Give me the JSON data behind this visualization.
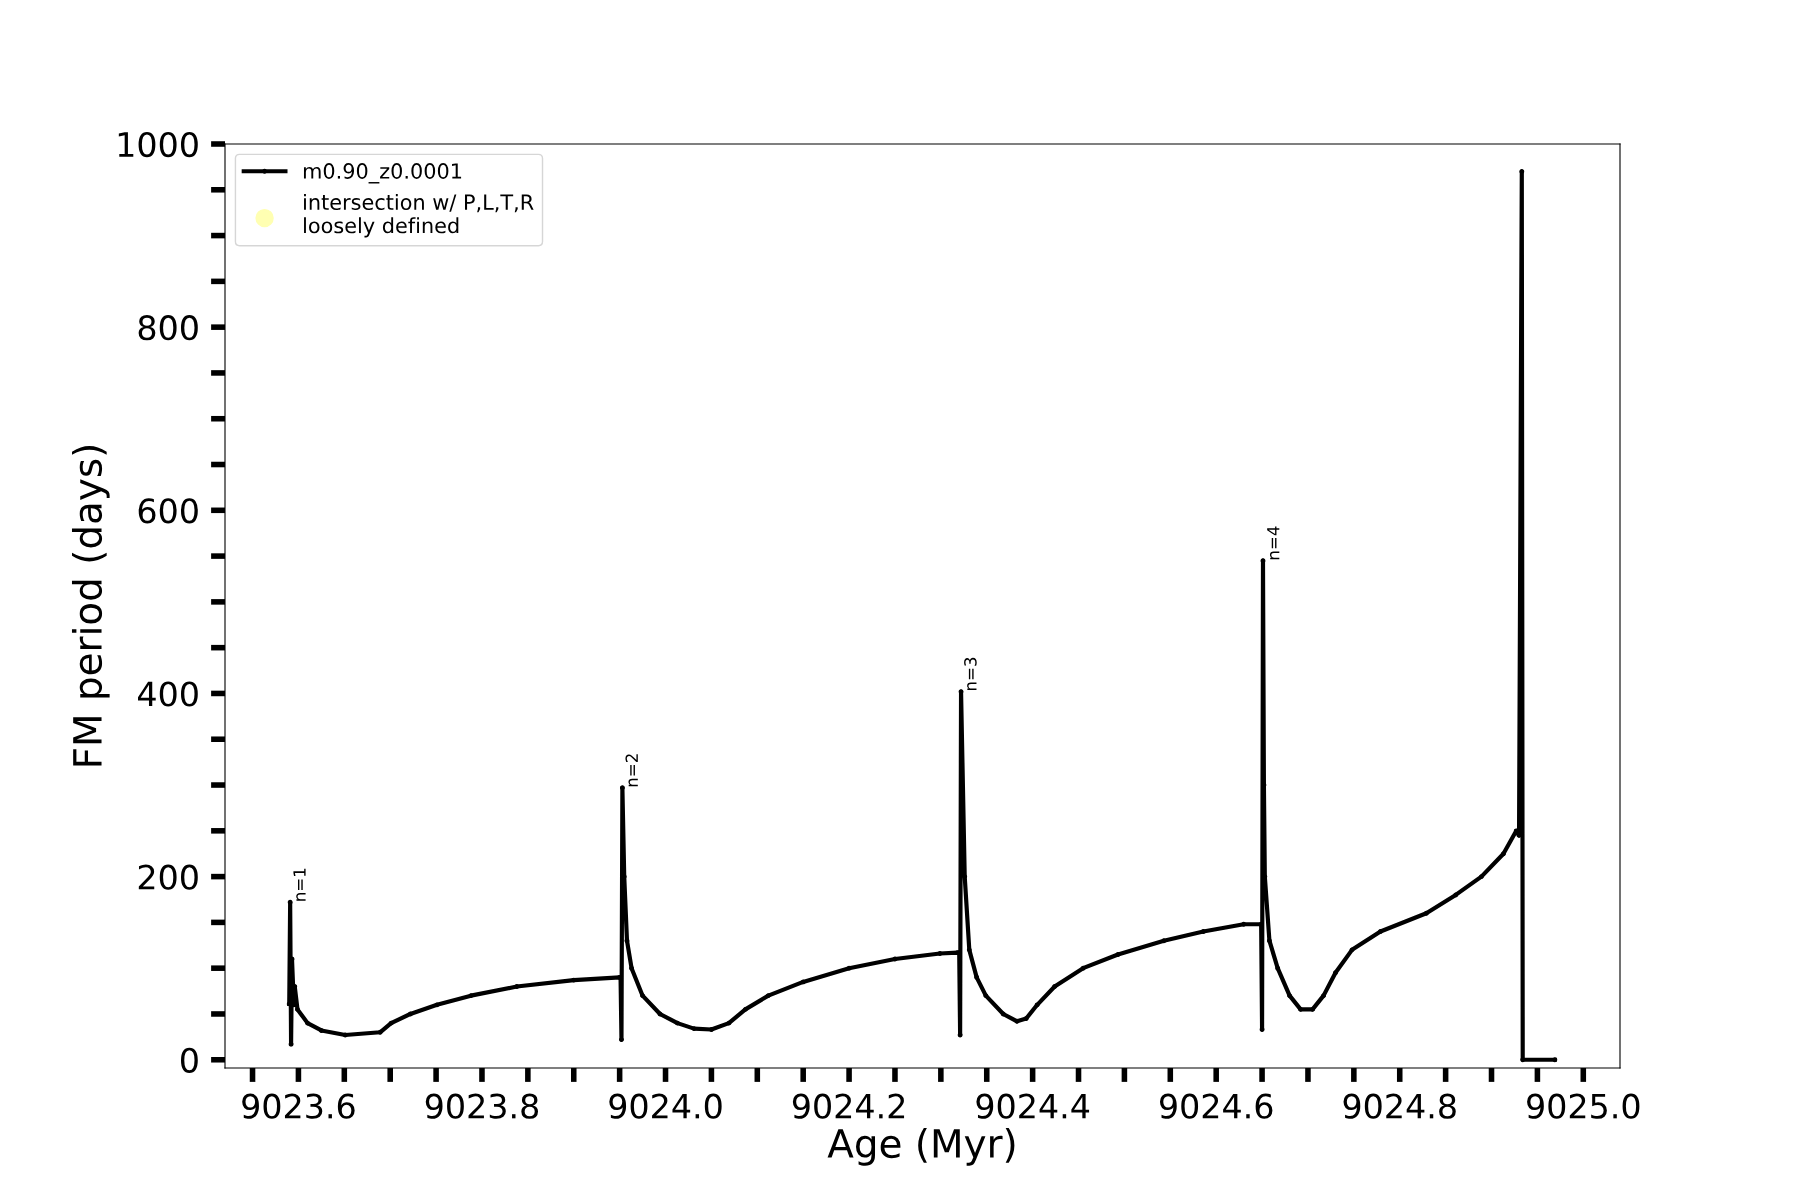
{
  "chart_data": {
    "type": "line",
    "xlabel": "Age (Myr)",
    "ylabel": "FM period (days)",
    "xlim": [
      9023.52,
      9025.04
    ],
    "ylim": [
      -9,
      1000
    ],
    "xticks": [
      {
        "value": 9023.55,
        "label": null
      },
      9023.6,
      {
        "value": 9023.65,
        "label": null
      },
      {
        "value": 9023.7,
        "label": null
      },
      {
        "value": 9023.75,
        "label": null
      },
      9023.8,
      {
        "value": 9023.85,
        "label": null
      },
      {
        "value": 9023.9,
        "label": null
      },
      {
        "value": 9023.95,
        "label": null
      },
      {
        "value": 9024.0,
        "label": "9024.0"
      },
      {
        "value": 9024.05,
        "label": null
      },
      {
        "value": 9024.1,
        "label": null
      },
      {
        "value": 9024.15,
        "label": null
      },
      9024.2,
      {
        "value": 9024.25,
        "label": null
      },
      {
        "value": 9024.3,
        "label": null
      },
      {
        "value": 9024.35,
        "label": null
      },
      9024.4,
      {
        "value": 9024.45,
        "label": null
      },
      {
        "value": 9024.5,
        "label": null
      },
      {
        "value": 9024.55,
        "label": null
      },
      9024.6,
      {
        "value": 9024.65,
        "label": null
      },
      {
        "value": 9024.7,
        "label": null
      },
      {
        "value": 9024.75,
        "label": null
      },
      9024.8,
      {
        "value": 9024.85,
        "label": null
      },
      {
        "value": 9024.9,
        "label": null
      },
      {
        "value": 9024.95,
        "label": null
      },
      {
        "value": 9025.0,
        "label": "9025.0"
      }
    ],
    "yticks": [
      0,
      {
        "value": 50,
        "label": null
      },
      {
        "value": 100,
        "label": null
      },
      {
        "value": 150,
        "label": null
      },
      200,
      {
        "value": 250,
        "label": null
      },
      {
        "value": 300,
        "label": null
      },
      {
        "value": 350,
        "label": null
      },
      400,
      {
        "value": 450,
        "label": null
      },
      {
        "value": 500,
        "label": null
      },
      {
        "value": 550,
        "label": null
      },
      600,
      {
        "value": 650,
        "label": null
      },
      {
        "value": 700,
        "label": null
      },
      {
        "value": 750,
        "label": null
      },
      800,
      {
        "value": 850,
        "label": null
      },
      {
        "value": 900,
        "label": null
      },
      {
        "value": 950,
        "label": null
      },
      1000
    ],
    "grid": false,
    "legend": "top left",
    "marker": "circle",
    "line_style": "solid",
    "series": [
      {
        "name": "m0.90_z0.0001",
        "color": "#000000",
        "x": [
          9023.59,
          9023.591,
          9023.592,
          9023.593,
          9023.595,
          9023.596,
          9023.599,
          9023.61,
          9023.625,
          9023.651,
          9023.689,
          9023.701,
          9023.722,
          9023.751,
          9023.788,
          9023.838,
          9023.9,
          9023.95,
          9023.951,
          9023.952,
          9023.953,
          9023.955,
          9023.958,
          9023.963,
          9023.975,
          9023.994,
          9024.013,
          9024.031,
          9024.05,
          9024.069,
          9024.087,
          9024.112,
          9024.15,
          9024.2,
          9024.25,
          9024.299,
          9024.318,
          9024.32,
          9024.321,
          9024.322,
          9024.326,
          9024.331,
          9024.339,
          9024.349,
          9024.368,
          9024.383,
          9024.393,
          9024.405,
          9024.424,
          9024.455,
          9024.493,
          9024.543,
          9024.586,
          9024.63,
          9024.649,
          9024.65,
          9024.651,
          9024.652,
          9024.653,
          9024.658,
          9024.667,
          9024.68,
          9024.692,
          9024.705,
          9024.717,
          9024.73,
          9024.748,
          9024.779,
          9024.829,
          9024.861,
          9024.889,
          9024.913,
          9024.927,
          9024.93,
          9024.933,
          9024.934,
          9024.969
        ],
        "values": [
          61,
          172,
          17,
          110,
          60,
          80,
          55,
          40,
          32,
          27,
          30,
          40,
          50,
          60,
          70,
          80,
          87,
          90,
          90,
          22,
          297,
          200,
          130,
          100,
          70,
          50,
          40,
          34,
          33,
          40,
          55,
          70,
          85,
          100,
          110,
          116,
          117,
          117,
          27,
          402,
          200,
          120,
          90,
          70,
          50,
          42,
          45,
          60,
          80,
          100,
          115,
          130,
          140,
          148,
          148,
          33,
          545,
          300,
          200,
          130,
          100,
          70,
          55,
          55,
          70,
          95,
          120,
          140,
          160,
          180,
          200,
          225,
          250,
          245,
          970,
          0,
          0
        ]
      },
      {
        "name": "intersection w/ P,L,T,R\nloosely defined",
        "type": "scatter",
        "color": "#ffffb2"
      }
    ],
    "annotations": [
      {
        "text": "n=1",
        "x": 9023.594,
        "y": 172
      },
      {
        "text": "n=2",
        "x": 9023.956,
        "y": 297
      },
      {
        "text": "n=3",
        "x": 9024.325,
        "y": 402
      },
      {
        "text": "n=4",
        "x": 9024.655,
        "y": 545
      }
    ]
  }
}
